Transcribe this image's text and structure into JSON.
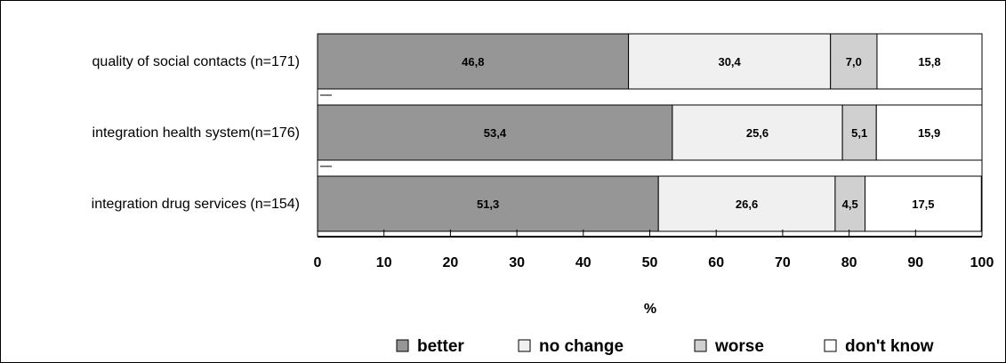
{
  "chart_data": {
    "type": "bar",
    "orientation": "horizontal",
    "stacked": true,
    "categories": [
      "quality of social contacts (n=171)",
      "integration health system(n=176)",
      "integration drug services (n=154)"
    ],
    "series": [
      {
        "name": "better",
        "color": "#969696",
        "values": [
          46.8,
          53.4,
          51.3
        ],
        "labels": [
          "46,8",
          "53,4",
          "51,3"
        ]
      },
      {
        "name": "no change",
        "color": "#f0f0f0",
        "values": [
          30.4,
          25.6,
          26.6
        ],
        "labels": [
          "30,4",
          "25,6",
          "26,6"
        ]
      },
      {
        "name": "worse",
        "color": "#d0d0d0",
        "values": [
          7.0,
          5.1,
          4.5
        ],
        "labels": [
          "7,0",
          "5,1",
          "4,5"
        ]
      },
      {
        "name": "don't know",
        "color": "#ffffff",
        "values": [
          15.8,
          15.9,
          17.5
        ],
        "labels": [
          "15,8",
          "15,9",
          "17,5"
        ]
      }
    ],
    "xlabel": "%",
    "xlim": [
      0,
      100
    ],
    "xticks": [
      "0",
      "10",
      "20",
      "30",
      "40",
      "50",
      "60",
      "70",
      "80",
      "90",
      "100"
    ],
    "legend_position": "bottom",
    "grid": false
  }
}
